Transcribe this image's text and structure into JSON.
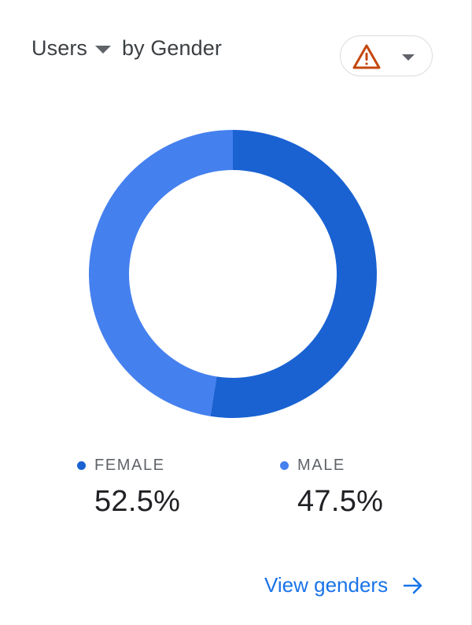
{
  "header": {
    "metric_label": "Users",
    "dimension_label": "by Gender"
  },
  "icons": {
    "warning": "warning-triangle-icon",
    "dropdown": "chevron-down-icon",
    "arrow": "arrow-right-icon"
  },
  "colors": {
    "female": "#1a62d2",
    "male": "#4580ef",
    "warning": "#c5470d",
    "link": "#1a73e8"
  },
  "chart_data": {
    "type": "pie",
    "style": "donut",
    "categories": [
      "FEMALE",
      "MALE"
    ],
    "values": [
      52.5,
      47.5
    ],
    "value_labels": [
      "52.5%",
      "47.5%"
    ],
    "unit": "%",
    "title": "",
    "legend_position": "bottom"
  },
  "footer": {
    "link_label": "View genders"
  }
}
